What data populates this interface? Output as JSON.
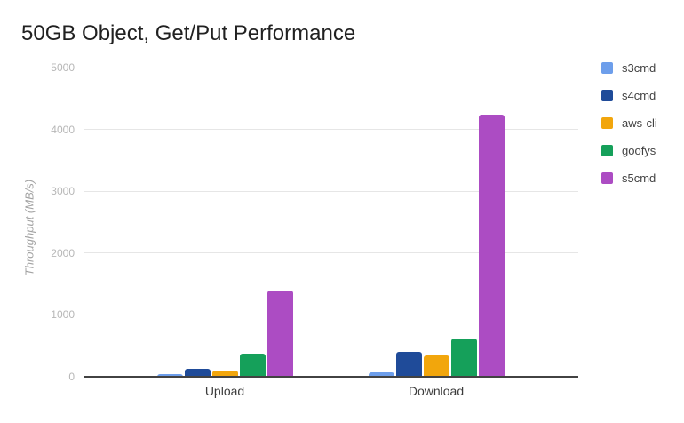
{
  "chart_data": {
    "type": "bar",
    "title": "50GB Object, Get/Put Performance",
    "xlabel": "",
    "ylabel": "Throughput (MB/s)",
    "categories": [
      "Upload",
      "Download"
    ],
    "series": [
      {
        "name": "s3cmd",
        "color": "#6d9eeb",
        "values": [
          45,
          70
        ]
      },
      {
        "name": "s4cmd",
        "color": "#1f4b99",
        "values": [
          130,
          400
        ]
      },
      {
        "name": "aws-cli",
        "color": "#f2a60c",
        "values": [
          100,
          350
        ]
      },
      {
        "name": "goofys",
        "color": "#15a05a",
        "values": [
          380,
          615
        ]
      },
      {
        "name": "s5cmd",
        "color": "#ac4cc3",
        "values": [
          1400,
          4240
        ]
      }
    ],
    "ylim": [
      0,
      5000
    ],
    "yticks": [
      0,
      1000,
      2000,
      3000,
      4000,
      5000
    ],
    "grid": true,
    "legend_position": "right",
    "background": "#ffffff"
  }
}
